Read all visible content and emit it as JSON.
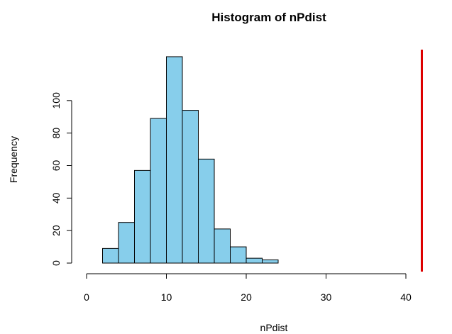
{
  "chart_data": {
    "type": "bar",
    "title": "Histogram of nPdist",
    "xlabel": "nPdist",
    "ylabel": "Frequency",
    "bins": [
      [
        2,
        4
      ],
      [
        4,
        6
      ],
      [
        6,
        8
      ],
      [
        8,
        10
      ],
      [
        10,
        12
      ],
      [
        12,
        14
      ],
      [
        14,
        16
      ],
      [
        16,
        18
      ],
      [
        18,
        20
      ],
      [
        20,
        22
      ],
      [
        22,
        24
      ]
    ],
    "values": [
      9,
      25,
      57,
      89,
      127,
      94,
      64,
      21,
      10,
      3,
      2
    ],
    "xlim": [
      0,
      45
    ],
    "ylim": [
      0,
      127
    ],
    "xticks": [
      0,
      10,
      20,
      30,
      40
    ],
    "yticks": [
      0,
      20,
      40,
      60,
      80,
      100
    ],
    "bar_color": "#87CEEB",
    "reference_line": {
      "x": 42,
      "color": "#DD0000"
    }
  }
}
